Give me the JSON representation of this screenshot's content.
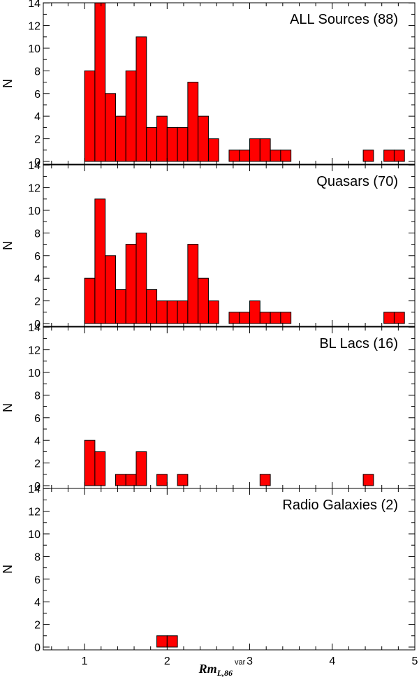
{
  "chart_data": [
    {
      "type": "bar",
      "title": "ALL Sources (88)",
      "ylabel": "N",
      "xlim": [
        0.5,
        5.0
      ],
      "ylim": [
        0,
        15
      ],
      "bin_width": 0.125,
      "bin_starts": [
        1.0,
        1.125,
        1.25,
        1.375,
        1.5,
        1.625,
        1.75,
        1.875,
        2.0,
        2.125,
        2.25,
        2.375,
        2.5,
        2.75,
        2.875,
        3.0,
        3.125,
        3.25,
        3.375,
        4.375,
        4.625,
        4.75
      ],
      "values": [
        8,
        14,
        6,
        4,
        8,
        11,
        3,
        4,
        3,
        3,
        7,
        4,
        2,
        1,
        1,
        2,
        2,
        1,
        1,
        1,
        1,
        1
      ]
    },
    {
      "type": "bar",
      "title": "Quasars (70)",
      "ylabel": "N",
      "xlim": [
        0.5,
        5.0
      ],
      "ylim": [
        0,
        15
      ],
      "bin_width": 0.125,
      "bin_starts": [
        1.0,
        1.125,
        1.25,
        1.375,
        1.5,
        1.625,
        1.75,
        1.875,
        2.0,
        2.125,
        2.25,
        2.375,
        2.5,
        2.75,
        2.875,
        3.0,
        3.125,
        3.25,
        3.375,
        4.625,
        4.75
      ],
      "values": [
        4,
        11,
        6,
        3,
        7,
        8,
        3,
        2,
        2,
        2,
        7,
        4,
        2,
        1,
        1,
        2,
        1,
        1,
        1,
        1,
        1
      ]
    },
    {
      "type": "bar",
      "title": "BL Lacs (16)",
      "ylabel": "N",
      "xlim": [
        0.5,
        5.0
      ],
      "ylim": [
        0,
        15
      ],
      "bin_width": 0.125,
      "bin_starts": [
        1.0,
        1.125,
        1.375,
        1.5,
        1.625,
        1.875,
        2.125,
        3.125,
        4.375
      ],
      "values": [
        4,
        3,
        1,
        1,
        3,
        1,
        1,
        1,
        1
      ]
    },
    {
      "type": "bar",
      "title": "Radio Galaxies (2)",
      "ylabel": "N",
      "xlim": [
        0.5,
        5.0
      ],
      "ylim": [
        0,
        15
      ],
      "bin_width": 0.125,
      "bin_starts": [
        1.875,
        2.0
      ],
      "values": [
        1,
        1
      ]
    }
  ],
  "axes": {
    "x_ticks": [
      1,
      2,
      3,
      4,
      5
    ],
    "x_tick_labels": [
      "1",
      "2",
      "3",
      "4",
      "5"
    ],
    "x_minor_step": 0.2,
    "y_ticks": [
      0,
      2,
      4,
      6,
      8,
      10,
      12,
      14
    ],
    "y_tick_labels": [
      "0",
      "2",
      "4",
      "6",
      "8",
      "10",
      "12",
      "14"
    ],
    "xlabel_main": "Rm",
    "xlabel_sub": "L,86",
    "xlabel_sup": "var"
  },
  "colors": {
    "bar_fill": "#ff0000",
    "bar_stroke": "#000000",
    "axis": "#000000"
  }
}
